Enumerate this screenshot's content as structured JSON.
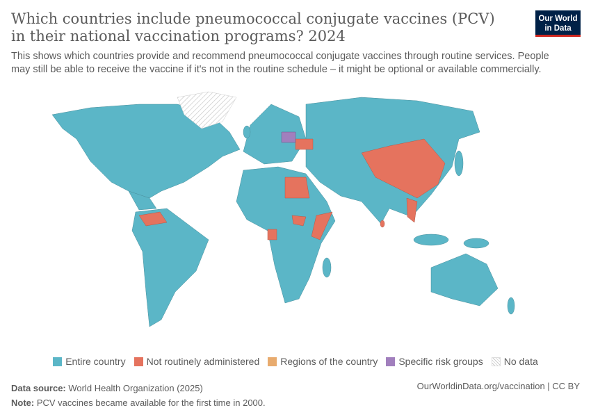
{
  "header": {
    "title": "Which countries include pneumococcal conjugate vaccines (PCV) in their national vaccination programs? 2024",
    "subtitle": "This shows which countries provide and recommend pneumococcal conjugate vaccines through routine services. People may still be able to receive the vaccine if it's not in the routine schedule – it might be optional or available commercially.",
    "logo": "Our World in Data"
  },
  "legend": [
    {
      "label": "Entire country",
      "color": "#5bb6c7"
    },
    {
      "label": "Not routinely administered",
      "color": "#e5735e"
    },
    {
      "label": "Regions of the country",
      "color": "#e8ab6e"
    },
    {
      "label": "Specific risk groups",
      "color": "#a17fbd"
    },
    {
      "label": "No data",
      "color": "hatched"
    }
  ],
  "footer": {
    "source_label": "Data source:",
    "source": "World Health Organization (2025)",
    "note_label": "Note:",
    "note": "PCV vaccines became available for the first time in 2000.",
    "link": "OurWorldinData.org/vaccination | CC BY"
  }
}
